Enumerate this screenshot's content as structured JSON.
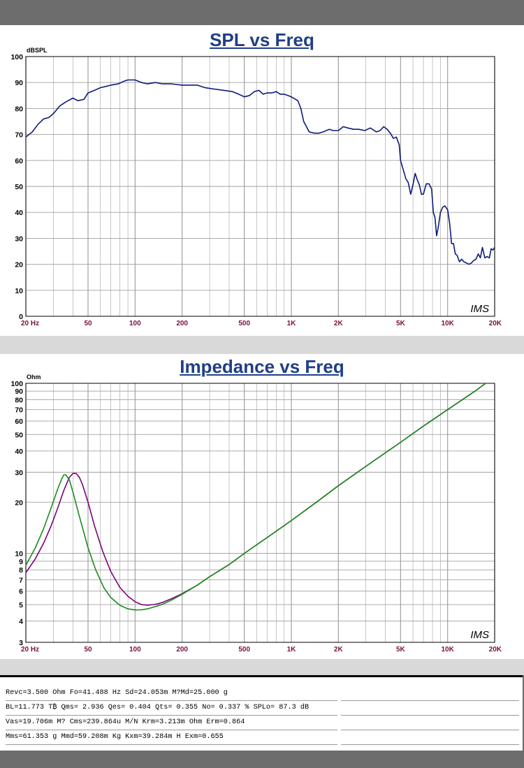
{
  "chart_data": [
    {
      "type": "line",
      "title": "SPL vs Freq",
      "ylabel": "dBSPL",
      "xlabel": "",
      "xscale": "log",
      "xlim": [
        20,
        20000
      ],
      "ylim": [
        0,
        100
      ],
      "grid": true,
      "x_tick_labels": [
        {
          "value": 20,
          "label": "20 Hz"
        },
        {
          "value": 50,
          "label": "50"
        },
        {
          "value": 100,
          "label": "100"
        },
        {
          "value": 200,
          "label": "200"
        },
        {
          "value": 500,
          "label": "500"
        },
        {
          "value": 1000,
          "label": "1K"
        },
        {
          "value": 2000,
          "label": "2K"
        },
        {
          "value": 5000,
          "label": "5K"
        },
        {
          "value": 10000,
          "label": "10K"
        },
        {
          "value": 20000,
          "label": "20K"
        }
      ],
      "y_ticks": [
        0,
        10,
        20,
        30,
        40,
        50,
        60,
        70,
        80,
        90,
        100
      ],
      "watermark": "IMS",
      "series": [
        {
          "color": "#0d1b7a",
          "x": [
            20,
            22,
            24,
            26,
            28,
            30,
            33,
            36,
            40,
            43,
            47,
            50,
            55,
            60,
            65,
            70,
            78,
            85,
            90,
            100,
            110,
            120,
            135,
            150,
            170,
            200,
            220,
            250,
            280,
            320,
            370,
            420,
            460,
            500,
            540,
            580,
            620,
            660,
            700,
            750,
            800,
            850,
            900,
            950,
            1000,
            1100,
            1150,
            1200,
            1300,
            1400,
            1500,
            1600,
            1750,
            1850,
            2000,
            2150,
            2300,
            2500,
            2700,
            2950,
            3200,
            3500,
            3700,
            3900,
            4100,
            4300,
            4500,
            4700,
            4900,
            5000,
            5200,
            5400,
            5600,
            5800,
            6000,
            6200,
            6400,
            6600,
            6800,
            7000,
            7300,
            7600,
            7900,
            8100,
            8300,
            8500,
            8700,
            9000,
            9300,
            9600,
            10000,
            10300,
            10600,
            10900,
            11200,
            11500,
            11900,
            12300,
            12700,
            13200,
            13700,
            14200,
            14700,
            15200,
            15700,
            16200,
            16700,
            17300,
            17900,
            18500,
            19000,
            19500,
            20000
          ],
          "y": [
            69,
            71,
            74,
            76,
            76.5,
            78,
            81,
            82.5,
            84,
            83,
            83.5,
            86,
            87,
            88,
            88.5,
            89,
            89.5,
            90.5,
            91,
            91,
            90,
            89.5,
            90,
            89.5,
            89.5,
            89,
            89,
            89,
            88,
            87.5,
            87,
            86.5,
            85.5,
            84.5,
            85,
            86.5,
            87,
            85.5,
            86,
            86,
            86.5,
            85.5,
            85.5,
            85,
            84.5,
            83,
            80,
            75,
            71,
            70.5,
            70.5,
            71,
            72,
            71.5,
            71.5,
            73,
            72.5,
            72,
            72,
            71.5,
            72.5,
            71,
            71.5,
            73,
            72,
            70.5,
            68.5,
            69,
            66,
            60,
            56.5,
            53,
            51.5,
            47,
            50.5,
            55,
            52.5,
            50.5,
            47,
            47,
            51,
            51,
            49,
            40,
            38,
            31,
            34,
            40,
            42,
            42.5,
            41,
            36,
            28,
            28,
            24,
            23.5,
            21,
            22,
            21,
            20.5,
            20,
            20.5,
            21.5,
            22,
            24,
            22.5,
            26.5,
            22.5,
            23,
            22.5,
            26,
            25.5,
            26.5
          ]
        }
      ]
    },
    {
      "type": "line",
      "title": "Impedance vs Freq",
      "ylabel": "Ohm",
      "xlabel": "",
      "xscale": "log",
      "yscale": "log",
      "xlim": [
        20,
        20000
      ],
      "ylim": [
        3,
        100
      ],
      "grid": true,
      "x_tick_labels": [
        {
          "value": 20,
          "label": "20 Hz"
        },
        {
          "value": 50,
          "label": "50"
        },
        {
          "value": 100,
          "label": "100"
        },
        {
          "value": 200,
          "label": "200"
        },
        {
          "value": 500,
          "label": "500"
        },
        {
          "value": 1000,
          "label": "1K"
        },
        {
          "value": 2000,
          "label": "2K"
        },
        {
          "value": 5000,
          "label": "5K"
        },
        {
          "value": 10000,
          "label": "10K"
        },
        {
          "value": 20000,
          "label": "20K"
        }
      ],
      "y_ticks": [
        3,
        4,
        5,
        6,
        7,
        8,
        9,
        10,
        20,
        30,
        40,
        50,
        60,
        70,
        80,
        90,
        100
      ],
      "watermark": "IMS",
      "series": [
        {
          "color": "#7b007b",
          "x": [
            20,
            23,
            26,
            29,
            32,
            35,
            38,
            40,
            42,
            44,
            46,
            50,
            55,
            62,
            70,
            80,
            90,
            100,
            110,
            120,
            130,
            140,
            150,
            170,
            200,
            250,
            300,
            400,
            500,
            700,
            1000,
            1500,
            2000,
            3000,
            5000,
            7000,
            10000,
            15000,
            17500
          ],
          "y": [
            7.7,
            9.3,
            11.5,
            14.5,
            18.5,
            23.5,
            28.0,
            29.5,
            29.5,
            28.0,
            25.5,
            20.0,
            14.5,
            10.3,
            7.8,
            6.3,
            5.6,
            5.2,
            5.0,
            4.96,
            5.0,
            5.05,
            5.15,
            5.4,
            5.8,
            6.5,
            7.3,
            8.6,
            10.0,
            12.4,
            15.6,
            20.5,
            25.0,
            32.5,
            45.0,
            56.0,
            70.0,
            90.0,
            100
          ]
        },
        {
          "color": "#1e8a1e",
          "x": [
            20,
            23,
            26,
            29,
            32,
            34,
            35,
            36,
            38,
            40,
            44,
            50,
            56,
            63,
            70,
            80,
            90,
            100,
            110,
            120,
            130,
            140,
            150,
            170,
            200,
            250,
            300,
            400,
            500,
            700,
            1000,
            1500,
            2000,
            3000,
            5000,
            7000,
            10000,
            15000,
            17500
          ],
          "y": [
            8.5,
            10.8,
            14.0,
            18.5,
            24.0,
            27.5,
            29.0,
            29.0,
            27.0,
            23.0,
            16.5,
            10.8,
            8.0,
            6.3,
            5.5,
            4.95,
            4.72,
            4.65,
            4.66,
            4.72,
            4.82,
            4.92,
            5.02,
            5.3,
            5.75,
            6.5,
            7.3,
            8.6,
            10.0,
            12.4,
            15.6,
            20.5,
            25.0,
            32.5,
            45.0,
            56.0,
            70.0,
            90.0,
            100
          ]
        }
      ]
    }
  ],
  "params": {
    "row1": "Revc=3.500 Ohm  Fo=41.488 Hz  Sd=24.053m M?Md=25.000 g",
    "row2": "BL=11.773 T₿  Qms= 2.936  Qes= 0.404  Qts= 0.355  No= 0.337 %  SPLo= 87.3 dB",
    "row3": "Vas=19.706m M? Cms=239.864u M/N  Krm=3.213m Ohm  Erm=0.864",
    "row4": "Mms=61.353 g  Mmd=59.208m Kg  Kxm=39.284m H  Exm=0.655"
  },
  "colors": {
    "title": "#1f3f86",
    "tick_label": "#7a1040",
    "grid": "#a0a0a0"
  }
}
